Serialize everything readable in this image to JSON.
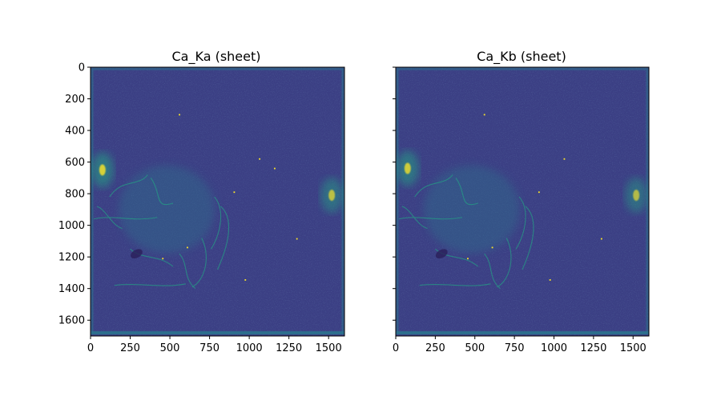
{
  "chart_data": [
    {
      "type": "heatmap",
      "title": "Ca_Ka (sheet)",
      "xlabel": "",
      "ylabel": "",
      "xlim": [
        0,
        1600
      ],
      "ylim": [
        1700,
        0
      ],
      "xticks": [
        0,
        250,
        500,
        750,
        1000,
        1250,
        1500
      ],
      "yticks": [
        0,
        200,
        400,
        600,
        800,
        1000,
        1200,
        1400,
        1600
      ],
      "show_yticklabels": true,
      "colormap": "viridis",
      "background_level": 0.15,
      "hotspots": [
        {
          "x": 75,
          "y": 650,
          "intensity": 0.95
        },
        {
          "x": 1520,
          "y": 810,
          "intensity": 0.8
        }
      ],
      "bright_specks": [
        {
          "x": 560,
          "y": 300
        },
        {
          "x": 1065,
          "y": 580
        },
        {
          "x": 1160,
          "y": 640
        },
        {
          "x": 905,
          "y": 790
        },
        {
          "x": 1300,
          "y": 1085
        },
        {
          "x": 975,
          "y": 1345
        },
        {
          "x": 455,
          "y": 1210
        },
        {
          "x": 610,
          "y": 1140
        }
      ]
    },
    {
      "type": "heatmap",
      "title": "Ca_Kb (sheet)",
      "xlabel": "",
      "ylabel": "",
      "xlim": [
        0,
        1600
      ],
      "ylim": [
        1700,
        0
      ],
      "xticks": [
        0,
        250,
        500,
        750,
        1000,
        1250,
        1500
      ],
      "yticks": [
        0,
        200,
        400,
        600,
        800,
        1000,
        1200,
        1400,
        1600
      ],
      "show_yticklabels": false,
      "colormap": "viridis",
      "background_level": 0.15,
      "hotspots": [
        {
          "x": 75,
          "y": 640,
          "intensity": 0.9
        },
        {
          "x": 1520,
          "y": 810,
          "intensity": 0.75
        }
      ],
      "bright_specks": [
        {
          "x": 560,
          "y": 300
        },
        {
          "x": 1065,
          "y": 580
        },
        {
          "x": 905,
          "y": 790
        },
        {
          "x": 1300,
          "y": 1085
        },
        {
          "x": 975,
          "y": 1345
        },
        {
          "x": 455,
          "y": 1210
        },
        {
          "x": 610,
          "y": 1140
        }
      ]
    }
  ],
  "colors": {
    "viridis_dark": "#3b3f84",
    "viridis_mid": "#2a788e",
    "viridis_light": "#22a884",
    "viridis_bright": "#fde725"
  }
}
